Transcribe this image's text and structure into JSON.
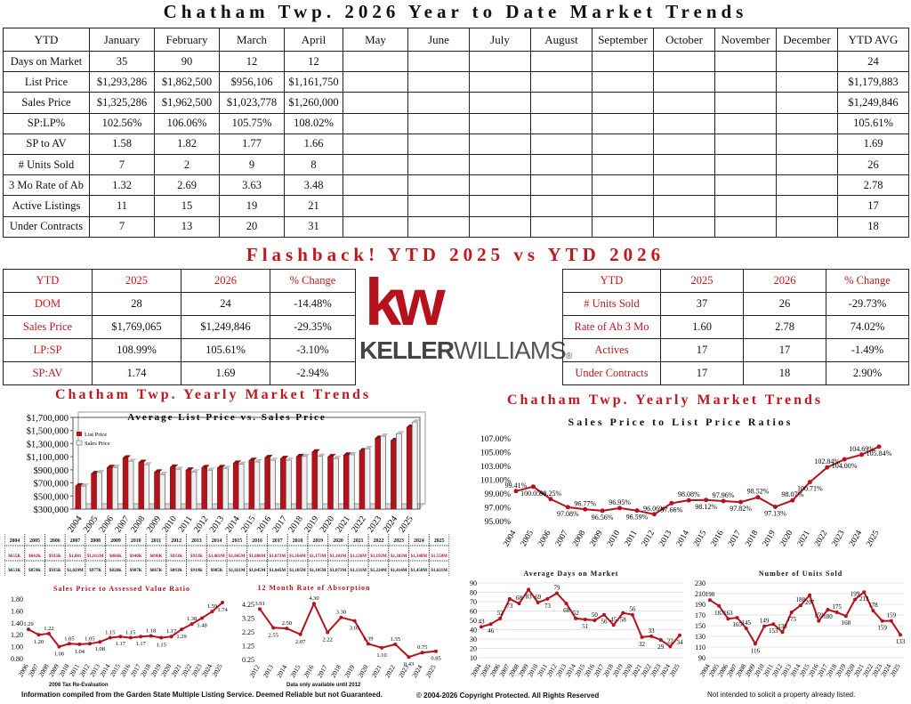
{
  "title": "Chatham Twp. 2026 Year to Date Market Trends",
  "ytd_table": {
    "headers": [
      "YTD",
      "January",
      "February",
      "March",
      "April",
      "May",
      "June",
      "July",
      "August",
      "September",
      "October",
      "November",
      "December",
      "YTD AVG"
    ],
    "rows": [
      [
        "Days on Market",
        "35",
        "90",
        "12",
        "12",
        "",
        "",
        "",
        "",
        "",
        "",
        "",
        "",
        "24"
      ],
      [
        "List Price",
        "$1,293,286",
        "$1,862,500",
        "$956,106",
        "$1,161,750",
        "",
        "",
        "",
        "",
        "",
        "",
        "",
        "",
        "$1,179,883"
      ],
      [
        "Sales Price",
        "$1,325,286",
        "$1,962,500",
        "$1,023,778",
        "$1,260,000",
        "",
        "",
        "",
        "",
        "",
        "",
        "",
        "",
        "$1,249,846"
      ],
      [
        "SP:LP%",
        "102.56%",
        "106.06%",
        "105.75%",
        "108.02%",
        "",
        "",
        "",
        "",
        "",
        "",
        "",
        "",
        "105.61%"
      ],
      [
        "SP to AV",
        "1.58",
        "1.82",
        "1.77",
        "1.66",
        "",
        "",
        "",
        "",
        "",
        "",
        "",
        "",
        "1.69"
      ],
      [
        "# Units Sold",
        "7",
        "2",
        "9",
        "8",
        "",
        "",
        "",
        "",
        "",
        "",
        "",
        "",
        "26"
      ],
      [
        "3 Mo Rate of Ab",
        "1.32",
        "2.69",
        "3.63",
        "3.48",
        "",
        "",
        "",
        "",
        "",
        "",
        "",
        "",
        "2.78"
      ],
      [
        "Active Listings",
        "11",
        "15",
        "19",
        "21",
        "",
        "",
        "",
        "",
        "",
        "",
        "",
        "",
        "17"
      ],
      [
        "Under Contracts",
        "7",
        "13",
        "20",
        "31",
        "",
        "",
        "",
        "",
        "",
        "",
        "",
        "",
        "18"
      ]
    ]
  },
  "flashback": {
    "title": "Flashback! YTD 2025 vs YTD 2026",
    "left": {
      "headers": [
        "YTD",
        "2025",
        "2026",
        "% Change"
      ],
      "rows": [
        [
          "DOM",
          "28",
          "24",
          "-14.48%"
        ],
        [
          "Sales Price",
          "$1,769,065",
          "$1,249,846",
          "-29.35%"
        ],
        [
          "LP:SP",
          "108.99%",
          "105.61%",
          "-3.10%"
        ],
        [
          "SP:AV",
          "1.74",
          "1.69",
          "-2.94%"
        ]
      ]
    },
    "right": {
      "headers": [
        "YTD",
        "2025",
        "2026",
        "% Change"
      ],
      "rows": [
        [
          "# Units Sold",
          "37",
          "26",
          "-29.73%"
        ],
        [
          "Rate of Ab 3 Mo",
          "1.60",
          "2.78",
          "74.02%"
        ],
        [
          "Actives",
          "17",
          "17",
          "-1.49%"
        ],
        [
          "Under Contracts",
          "17",
          "18",
          "2.90%"
        ]
      ]
    }
  },
  "logo": {
    "mark": "kw",
    "text_bold": "KELLER",
    "text_light": "WILLIAMS",
    "mark_symbol": "®"
  },
  "section_titles": {
    "left": "Chatham Twp. Yearly Market Trends",
    "right": "Chatham Twp. Yearly Market Trends"
  },
  "year_table": {
    "years": [
      "2004",
      "2005",
      "2006",
      "2007",
      "2008",
      "2009",
      "2010",
      "2011",
      "2012",
      "2013",
      "2014",
      "2015",
      "2016",
      "2017",
      "2018",
      "2019",
      "2020",
      "2021",
      "2022",
      "2023",
      "2024",
      "2025"
    ],
    "list_row": [
      "$655K",
      "$842K",
      "$935K",
      "$1,081",
      "$1,013M",
      "$866K",
      "$940K",
      "$896K",
      "$933K",
      "$933K",
      "$1,001M",
      "$1,045M",
      "$1,086M",
      "$1,073M",
      "$1,104M",
      "$1,173M",
      "$1,101M",
      "$1,126M",
      "$1,192M",
      "$1,383M",
      "$1,348M",
      "$1,550M"
    ],
    "sales_row": [
      "$651K",
      "$859K",
      "$935K",
      "$1,029M",
      "$977K",
      "$828K",
      "$907K",
      "$867K",
      "$893K",
      "$919K",
      "$985K",
      "$1,021M",
      "$1,045M",
      "$1,045M",
      "$1,105M",
      "$1,105M",
      "$1,073M",
      "$1,131M",
      "$1,224M",
      "$1,414M",
      "$1,450M",
      "$1,631M"
    ]
  },
  "footnotes": {
    "compiled": "Information compiled from the Garden State Multiple Listing Service.  Deemed Reliable but not Guaranteed.",
    "copyright": "© 2004-2026 Copyright Protected.  All Rights Reserved",
    "solicit": "Not intended to solicit a property already listed.",
    "reeval": "2006 Tax Re-Evaluation",
    "data_note": "Data only available until 2012"
  },
  "chart_data": [
    {
      "type": "bar",
      "title": "Average List Price vs. Sales Price",
      "categories": [
        "2004",
        "2005",
        "2006",
        "2007",
        "2008",
        "2009",
        "2010",
        "2011",
        "2012",
        "2013",
        "2014",
        "2015",
        "2016",
        "2017",
        "2018",
        "2019",
        "2020",
        "2021",
        "2022",
        "2023",
        "2024",
        "2025"
      ],
      "series": [
        {
          "name": "List Price",
          "values": [
            655000,
            842000,
            935000,
            1081000,
            1013000,
            866000,
            940000,
            896000,
            933000,
            933000,
            1001000,
            1045000,
            1086000,
            1073000,
            1104000,
            1173000,
            1101000,
            1126000,
            1192000,
            1383000,
            1348000,
            1550000
          ]
        },
        {
          "name": "Sales Price",
          "values": [
            651000,
            859000,
            935000,
            1029000,
            977000,
            828000,
            907000,
            867000,
            893000,
            919000,
            985000,
            1021000,
            1045000,
            1045000,
            1105000,
            1105000,
            1073000,
            1131000,
            1224000,
            1414000,
            1450000,
            1631000
          ]
        }
      ],
      "yticks": [
        "$300,000",
        "$500,000",
        "$700,000",
        "$900,000",
        "$1,100,000",
        "$1,300,000",
        "$1,500,000",
        "$1,700,000"
      ],
      "ylim": [
        300000,
        1700000
      ],
      "legend": "top-left",
      "colors": {
        "List Price": "#b5121b",
        "Sales Price": "#e8e8e8"
      }
    },
    {
      "type": "line",
      "title": "Sales Price to List Price Ratios",
      "x": [
        "2004",
        "2005",
        "2006",
        "2007",
        "2008",
        "2009",
        "2010",
        "2011",
        "2012",
        "2013",
        "2014",
        "2015",
        "2016",
        "2017",
        "2018",
        "2019",
        "2020",
        "2021",
        "2022",
        "2023",
        "2024",
        "2025"
      ],
      "values": [
        99.41,
        100.05,
        98.25,
        97.08,
        96.77,
        96.56,
        96.95,
        96.59,
        96.06,
        97.66,
        98.08,
        98.12,
        97.96,
        97.82,
        98.52,
        97.13,
        98.07,
        100.71,
        102.84,
        104.0,
        104.69,
        105.84
      ],
      "labels": [
        "99.41%",
        "100.05%",
        "98.25%",
        "97.08%",
        "96.77%",
        "96.56%",
        "96.95%",
        "96.59%",
        "96.06%",
        "97.66%",
        "98.08%",
        "98.12%",
        "97.96%",
        "97.82%",
        "98.52%",
        "97.13%",
        "98.07%",
        "100.71%",
        "102.84%",
        "104.00%",
        "104.69%",
        "105.84%"
      ],
      "yticks": [
        "95.00%",
        "97.00%",
        "99.00%",
        "101.00%",
        "103.00%",
        "105.00%",
        "107.00%"
      ],
      "ylim": [
        95,
        107.5
      ]
    },
    {
      "type": "line",
      "title": "Sales Price to Assessed Value Ratio",
      "x": [
        "2006",
        "2007",
        "2008",
        "2009",
        "2010",
        "2011",
        "2012",
        "2013",
        "2014",
        "2015",
        "2016",
        "2017",
        "2018",
        "2019",
        "2020",
        "2021",
        "2022",
        "2023",
        "2024",
        "2025"
      ],
      "values": [
        1.29,
        1.2,
        1.22,
        1.0,
        1.05,
        1.04,
        1.05,
        1.08,
        1.15,
        1.17,
        1.15,
        1.17,
        1.18,
        1.15,
        1.17,
        1.29,
        1.38,
        1.48,
        1.59,
        1.74
      ],
      "labels": [
        "1.29",
        "1.20",
        "1.22",
        "1.00",
        "1.05",
        "1.04",
        "1.05",
        "1.08",
        "1.15",
        "1.17",
        "1.15",
        "1.17",
        "1.18",
        "1.15",
        "1.17",
        "1.29",
        "1.38",
        "1.48",
        "1.59",
        "1.74"
      ],
      "yticks": [
        "0.80",
        "1.00",
        "1.20",
        "1.40",
        "1.60",
        "1.80"
      ],
      "ylim": [
        0.8,
        1.8
      ]
    },
    {
      "type": "line",
      "title": "12 Month Rate of Absorption",
      "x": [
        "2012",
        "2013",
        "2014",
        "2015",
        "2016",
        "2017",
        "2018",
        "2019",
        "2020",
        "2021",
        "2022",
        "2023",
        "2024",
        "2025"
      ],
      "values": [
        3.91,
        2.55,
        2.5,
        2.07,
        4.3,
        2.22,
        3.3,
        3.05,
        1.39,
        1.1,
        1.35,
        0.43,
        0.75,
        0.85
      ],
      "labels": [
        "3.91",
        "2.55",
        "2.50",
        "2.07",
        "4.30",
        "2.22",
        "3.30",
        "3.05",
        "1.39",
        "1.10",
        "1.35",
        "0.43",
        "0.75",
        "0.85"
      ],
      "yticks": [
        "0.25",
        "1.25",
        "2.25",
        "3.25",
        "4.25"
      ],
      "ylim": [
        0.25,
        4.7
      ]
    },
    {
      "type": "line",
      "title": "Average Days on Market",
      "x": [
        "2004",
        "2005",
        "2006",
        "2007",
        "2008",
        "2009",
        "2010",
        "2011",
        "2012",
        "2013",
        "2014",
        "2015",
        "2016",
        "2017",
        "2018",
        "2019",
        "2020",
        "2021",
        "2022",
        "2023",
        "2024",
        "2025"
      ],
      "values": [
        43,
        46,
        52,
        73,
        68,
        83,
        69,
        73,
        79,
        68,
        52,
        51,
        50,
        56,
        45,
        58,
        56,
        32,
        33,
        29,
        22,
        34
      ],
      "labels": [
        "43",
        "46",
        "52",
        "73",
        "68",
        "83",
        "69",
        "73",
        "79",
        "68",
        "52",
        "51",
        "50",
        "56",
        "45",
        "58",
        "56",
        "32",
        "33",
        "29",
        "22",
        "34"
      ],
      "yticks": [
        "10",
        "20",
        "30",
        "40",
        "50",
        "60",
        "70",
        "80",
        "90"
      ],
      "ylim": [
        10,
        90
      ]
    },
    {
      "type": "line",
      "title": "Number of Units Sold",
      "x": [
        "2004",
        "2005",
        "2006",
        "2007",
        "2008",
        "2009",
        "2010",
        "2011",
        "2012",
        "2013",
        "2014",
        "2015",
        "2016",
        "2017",
        "2018",
        "2019",
        "2020",
        "2021",
        "2022",
        "2023",
        "2024",
        "2025"
      ],
      "values": [
        198,
        187,
        163,
        165,
        145,
        116,
        149,
        153,
        138,
        175,
        188,
        207,
        159,
        180,
        175,
        168,
        199,
        213,
        178,
        159,
        159,
        133
      ],
      "labels": [
        "198",
        "187",
        "163",
        "165",
        "145",
        "116",
        "149",
        "153",
        "138",
        "175",
        "188",
        "207",
        "159",
        "180",
        "175",
        "168",
        "199",
        "213",
        "178",
        "159",
        "159",
        "133"
      ],
      "yticks": [
        "90",
        "110",
        "130",
        "150",
        "170",
        "190",
        "210",
        "230"
      ],
      "ylim": [
        90,
        230
      ]
    }
  ]
}
